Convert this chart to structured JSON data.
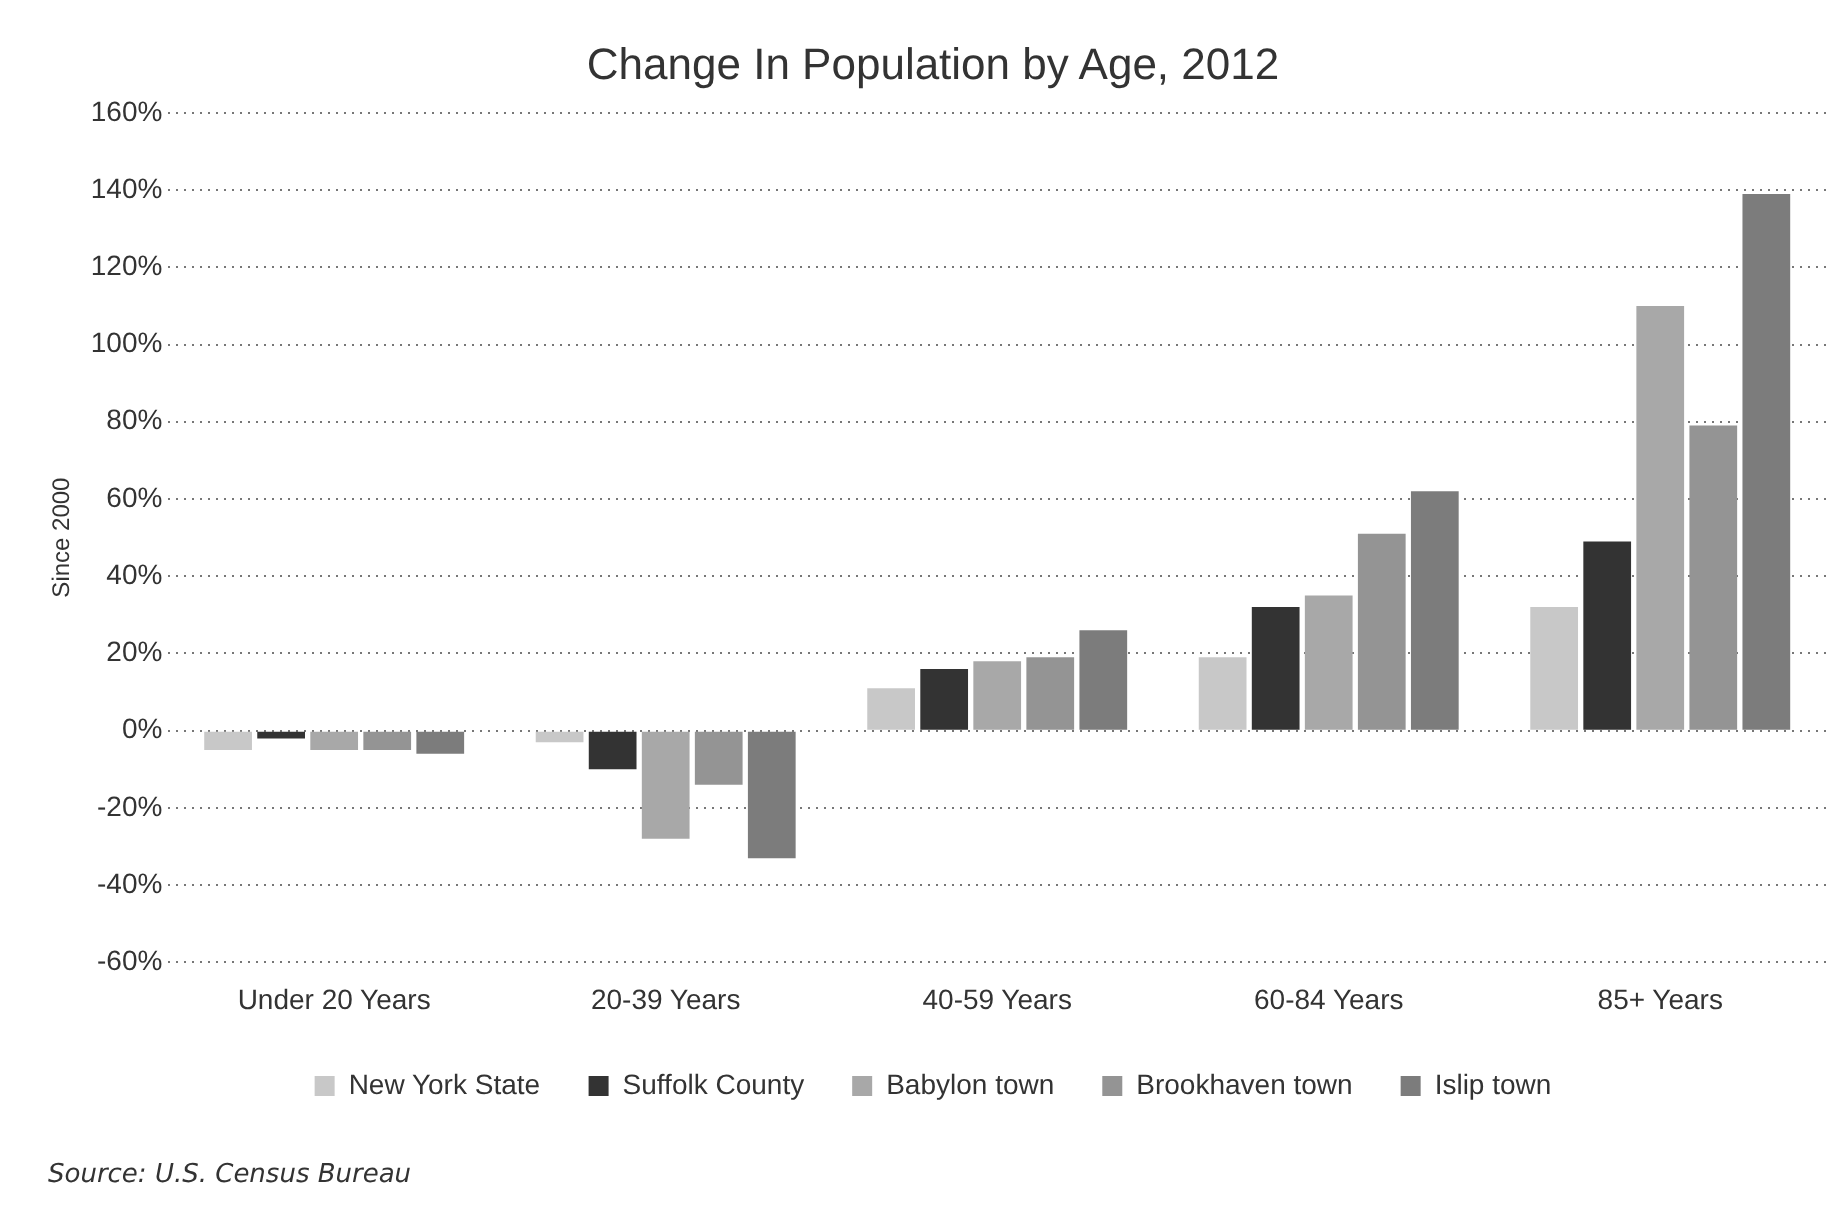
{
  "chart_data": {
    "type": "bar",
    "title": "Change In Population by Age, 2012",
    "ylabel": "Since 2000",
    "categories": [
      "Under 20 Years",
      "20-39 Years",
      "40-59 Years",
      "60-84 Years",
      "85+ Years"
    ],
    "series": [
      {
        "name": "New York State",
        "color": "#c8c8c8",
        "values": [
          -5,
          -3,
          11,
          19,
          32
        ]
      },
      {
        "name": "Suffolk County",
        "color": "#333333",
        "values": [
          -2,
          -10,
          16,
          32,
          49
        ]
      },
      {
        "name": "Babylon town",
        "color": "#a8a8a8",
        "values": [
          -5,
          -28,
          18,
          35,
          110
        ]
      },
      {
        "name": "Brookhaven town",
        "color": "#949494",
        "values": [
          -5,
          -14,
          19,
          51,
          79
        ]
      },
      {
        "name": "Islip town",
        "color": "#7c7c7c",
        "values": [
          -6,
          -33,
          26,
          62,
          139
        ]
      }
    ],
    "ylim": [
      -60,
      160
    ],
    "yticks": [
      {
        "value": -60,
        "label": "-60%"
      },
      {
        "value": -40,
        "label": "-40%"
      },
      {
        "value": -20,
        "label": "-20%"
      },
      {
        "value": 0,
        "label": "0%"
      },
      {
        "value": 20,
        "label": "20%"
      },
      {
        "value": 40,
        "label": "40%"
      },
      {
        "value": 60,
        "label": "60%"
      },
      {
        "value": 80,
        "label": "80%"
      },
      {
        "value": 100,
        "label": "100%"
      },
      {
        "value": 120,
        "label": "120%"
      },
      {
        "value": 140,
        "label": "140%"
      },
      {
        "value": 160,
        "label": "160%"
      }
    ],
    "grid": "y",
    "legend": "bottom",
    "line_style": "dotted",
    "annotations": [
      "Source: U.S. Census Bureau"
    ]
  }
}
